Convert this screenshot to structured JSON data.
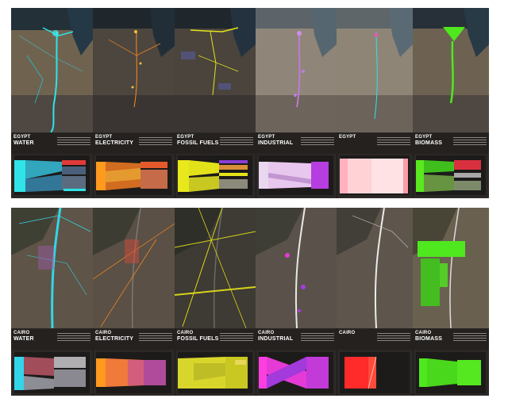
{
  "rows": [
    {
      "id": "egypt",
      "panels": [
        {
          "country": "EGYPT",
          "sector": "WATER",
          "accent": "#2fe3e8"
        },
        {
          "country": "EGYPT",
          "sector": "ELECTRICITY",
          "accent": "#ff8a1e"
        },
        {
          "country": "EGYPT",
          "sector": "FOSSIL FUELS",
          "accent": "#e5e41a"
        },
        {
          "country": "EGYPT",
          "sector": "INDUSTRIAL",
          "accent": "#c27be0"
        },
        {
          "country": "EGYPT",
          "sector": "",
          "accent": "#ffb7bf"
        },
        {
          "country": "EGYPT",
          "sector": "BIOMASS",
          "accent": "#4fe81e"
        }
      ]
    },
    {
      "id": "cairo",
      "panels": [
        {
          "country": "CAIRO",
          "sector": "WATER",
          "accent": "#33d6e8"
        },
        {
          "country": "CAIRO",
          "sector": "ELECTRICITY",
          "accent": "#ff8a1e"
        },
        {
          "country": "CAIRO",
          "sector": "FOSSIL FUELS",
          "accent": "#d6d41b"
        },
        {
          "country": "CAIRO",
          "sector": "INDUSTRIAL",
          "accent": "#e43ad6"
        },
        {
          "country": "CAIRO",
          "sector": "",
          "accent": "#ff2a2a"
        },
        {
          "country": "CAIRO",
          "sector": "BIOMASS",
          "accent": "#4fe81e"
        }
      ]
    }
  ]
}
